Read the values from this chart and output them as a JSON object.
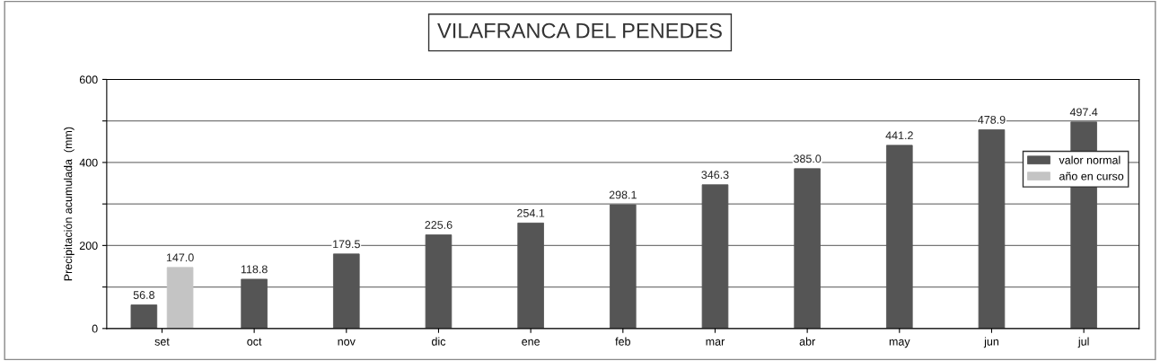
{
  "chart_data": {
    "type": "bar",
    "title": "VILAFRANCA DEL PENEDES",
    "ylabel": "Precipitación acumulada  (mm)",
    "categories": [
      "set",
      "oct",
      "nov",
      "dic",
      "ene",
      "feb",
      "mar",
      "abr",
      "may",
      "jun",
      "jul"
    ],
    "series": [
      {
        "name": "valor normal",
        "color": "#555555",
        "values": [
          56.8,
          118.8,
          179.5,
          225.6,
          254.1,
          298.1,
          346.3,
          385.0,
          441.2,
          478.9,
          497.4
        ],
        "value_labels": [
          "56.8",
          "118.8",
          "179.5",
          "225.6",
          "254.1",
          "298.1",
          "346.3",
          "385.0",
          "441.2",
          "478.9",
          "497.4"
        ]
      },
      {
        "name": "año en curso",
        "color": "#c4c4c4",
        "values": [
          147.0,
          null,
          null,
          null,
          null,
          null,
          null,
          null,
          null,
          null,
          null
        ],
        "value_labels": [
          "147.0",
          null,
          null,
          null,
          null,
          null,
          null,
          null,
          null,
          null,
          null
        ]
      }
    ],
    "ylim": [
      0,
      600
    ],
    "yticks": [
      0,
      {
        "value": 100,
        "label": null
      },
      200,
      {
        "value": 300,
        "label": null
      },
      400,
      {
        "value": 500,
        "label": null
      },
      600
    ],
    "grid": "y",
    "legend": "center right"
  }
}
